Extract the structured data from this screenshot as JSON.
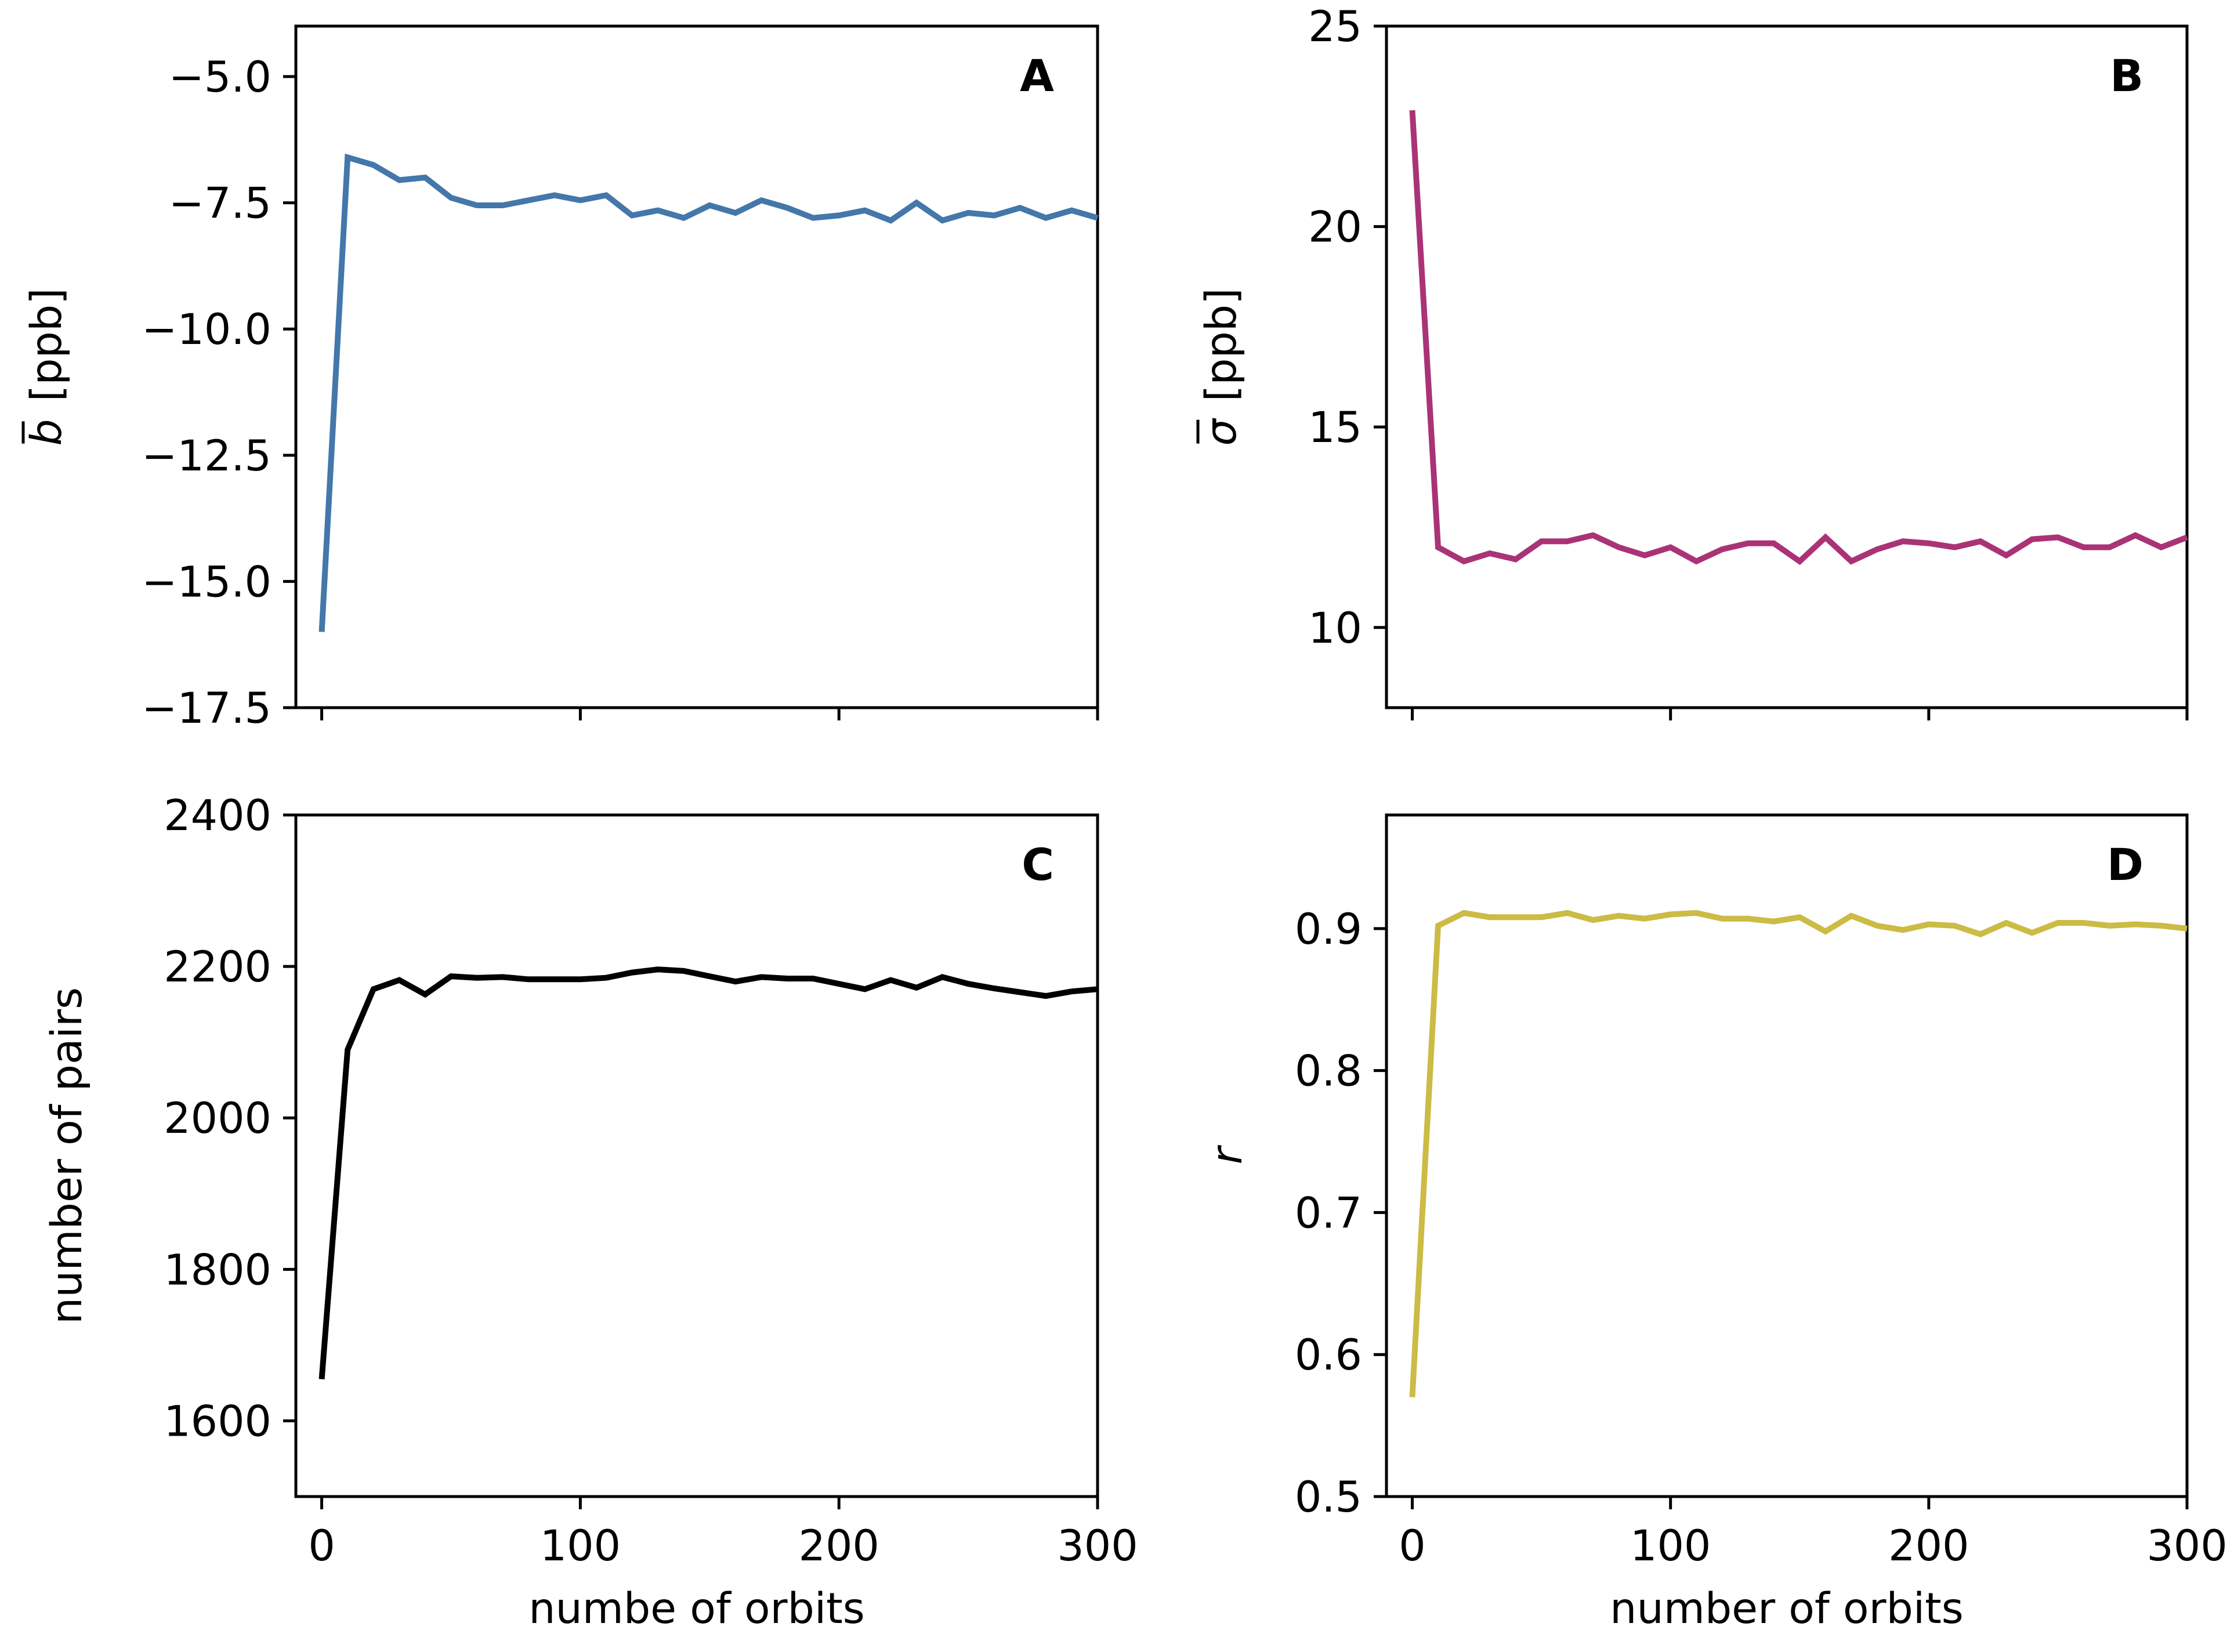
{
  "chart_data": [
    {
      "panel": "A",
      "type": "line",
      "color": "#4477aa",
      "ylabel": {
        "symbol": "b",
        "unit": "[ppb]"
      },
      "xlabel": "",
      "xlim": [
        -10,
        300
      ],
      "ylim": [
        -17.5,
        -4.0
      ],
      "xticks": [
        0,
        100,
        200,
        300
      ],
      "xticklabels_shown": false,
      "yticks": [
        -5.0,
        -7.5,
        -10.0,
        -12.5,
        -15.0,
        -17.5
      ],
      "yticklabels": [
        "−5.0",
        "−7.5",
        "−10.0",
        "−12.5",
        "−15.0",
        "−17.5"
      ],
      "x": [
        0,
        10,
        20,
        30,
        40,
        50,
        60,
        70,
        80,
        90,
        100,
        110,
        120,
        130,
        140,
        150,
        160,
        170,
        180,
        190,
        200,
        210,
        220,
        230,
        240,
        250,
        260,
        270,
        280,
        290,
        300
      ],
      "values": [
        -16.0,
        -6.6,
        -6.75,
        -7.05,
        -7.0,
        -7.4,
        -7.55,
        -7.55,
        -7.45,
        -7.35,
        -7.45,
        -7.35,
        -7.75,
        -7.65,
        -7.8,
        -7.55,
        -7.7,
        -7.45,
        -7.6,
        -7.8,
        -7.75,
        -7.65,
        -7.85,
        -7.5,
        -7.85,
        -7.7,
        -7.75,
        -7.6,
        -7.8,
        -7.65,
        -7.8
      ]
    },
    {
      "panel": "B",
      "type": "line",
      "color": "#aa3377",
      "ylabel": {
        "symbol": "σ",
        "unit": "[ppb]"
      },
      "xlabel": "",
      "xlim": [
        -10,
        300
      ],
      "ylim": [
        8,
        25
      ],
      "xticks": [
        0,
        100,
        200,
        300
      ],
      "xticklabels_shown": false,
      "yticks": [
        10,
        15,
        20,
        25
      ],
      "yticklabels": [
        "10",
        "15",
        "20",
        "25"
      ],
      "x": [
        0,
        10,
        20,
        30,
        40,
        50,
        60,
        70,
        80,
        90,
        100,
        110,
        120,
        130,
        140,
        150,
        160,
        170,
        180,
        190,
        200,
        210,
        220,
        230,
        240,
        250,
        260,
        270,
        280,
        290,
        300
      ],
      "values": [
        22.9,
        12.0,
        11.65,
        11.85,
        11.7,
        12.15,
        12.15,
        12.3,
        12.0,
        11.8,
        12.0,
        11.65,
        11.95,
        12.1,
        12.1,
        11.65,
        12.25,
        11.65,
        11.95,
        12.15,
        12.1,
        12.0,
        12.15,
        11.8,
        12.2,
        12.25,
        12.0,
        12.0,
        12.3,
        12.0,
        12.25
      ]
    },
    {
      "panel": "C",
      "type": "line",
      "color": "#000000",
      "ylabel": {
        "text": "number of pairs"
      },
      "xlabel": "numbe of orbits",
      "xlim": [
        -10,
        300
      ],
      "ylim": [
        1500,
        2400
      ],
      "xticks": [
        0,
        100,
        200,
        300
      ],
      "xticklabels": [
        "0",
        "100",
        "200",
        "300"
      ],
      "xticklabels_shown": true,
      "yticks": [
        1600,
        1800,
        2000,
        2200,
        2400
      ],
      "yticklabels": [
        "1600",
        "1800",
        "2000",
        "2200",
        "2400"
      ],
      "x": [
        0,
        10,
        20,
        30,
        40,
        50,
        60,
        70,
        80,
        90,
        100,
        110,
        120,
        130,
        140,
        150,
        160,
        170,
        180,
        190,
        200,
        210,
        220,
        230,
        240,
        250,
        260,
        270,
        280,
        290,
        300
      ],
      "values": [
        1655,
        2090,
        2170,
        2182,
        2163,
        2187,
        2185,
        2186,
        2183,
        2183,
        2183,
        2185,
        2192,
        2196,
        2194,
        2187,
        2180,
        2186,
        2184,
        2184,
        2177,
        2170,
        2182,
        2172,
        2186,
        2177,
        2171,
        2166,
        2161,
        2167,
        2170
      ]
    },
    {
      "panel": "D",
      "type": "line",
      "color": "#ccbb44",
      "ylabel": {
        "symbol": "r"
      },
      "xlabel": "number of orbits",
      "xlim": [
        -10,
        300
      ],
      "ylim": [
        0.5,
        0.98
      ],
      "xticks": [
        0,
        100,
        200,
        300
      ],
      "xticklabels": [
        "0",
        "100",
        "200",
        "300"
      ],
      "xticklabels_shown": true,
      "yticks": [
        0.5,
        0.6,
        0.7,
        0.8,
        0.9
      ],
      "yticklabels": [
        "0.5",
        "0.6",
        "0.7",
        "0.8",
        "0.9"
      ],
      "x": [
        0,
        10,
        20,
        30,
        40,
        50,
        60,
        70,
        80,
        90,
        100,
        110,
        120,
        130,
        140,
        150,
        160,
        170,
        180,
        190,
        200,
        210,
        220,
        230,
        240,
        250,
        260,
        270,
        280,
        290,
        300
      ],
      "values": [
        0.57,
        0.902,
        0.911,
        0.908,
        0.908,
        0.908,
        0.911,
        0.906,
        0.909,
        0.907,
        0.91,
        0.911,
        0.907,
        0.907,
        0.905,
        0.908,
        0.898,
        0.909,
        0.902,
        0.899,
        0.903,
        0.902,
        0.896,
        0.904,
        0.897,
        0.904,
        0.904,
        0.902,
        0.903,
        0.902,
        0.9
      ]
    }
  ]
}
